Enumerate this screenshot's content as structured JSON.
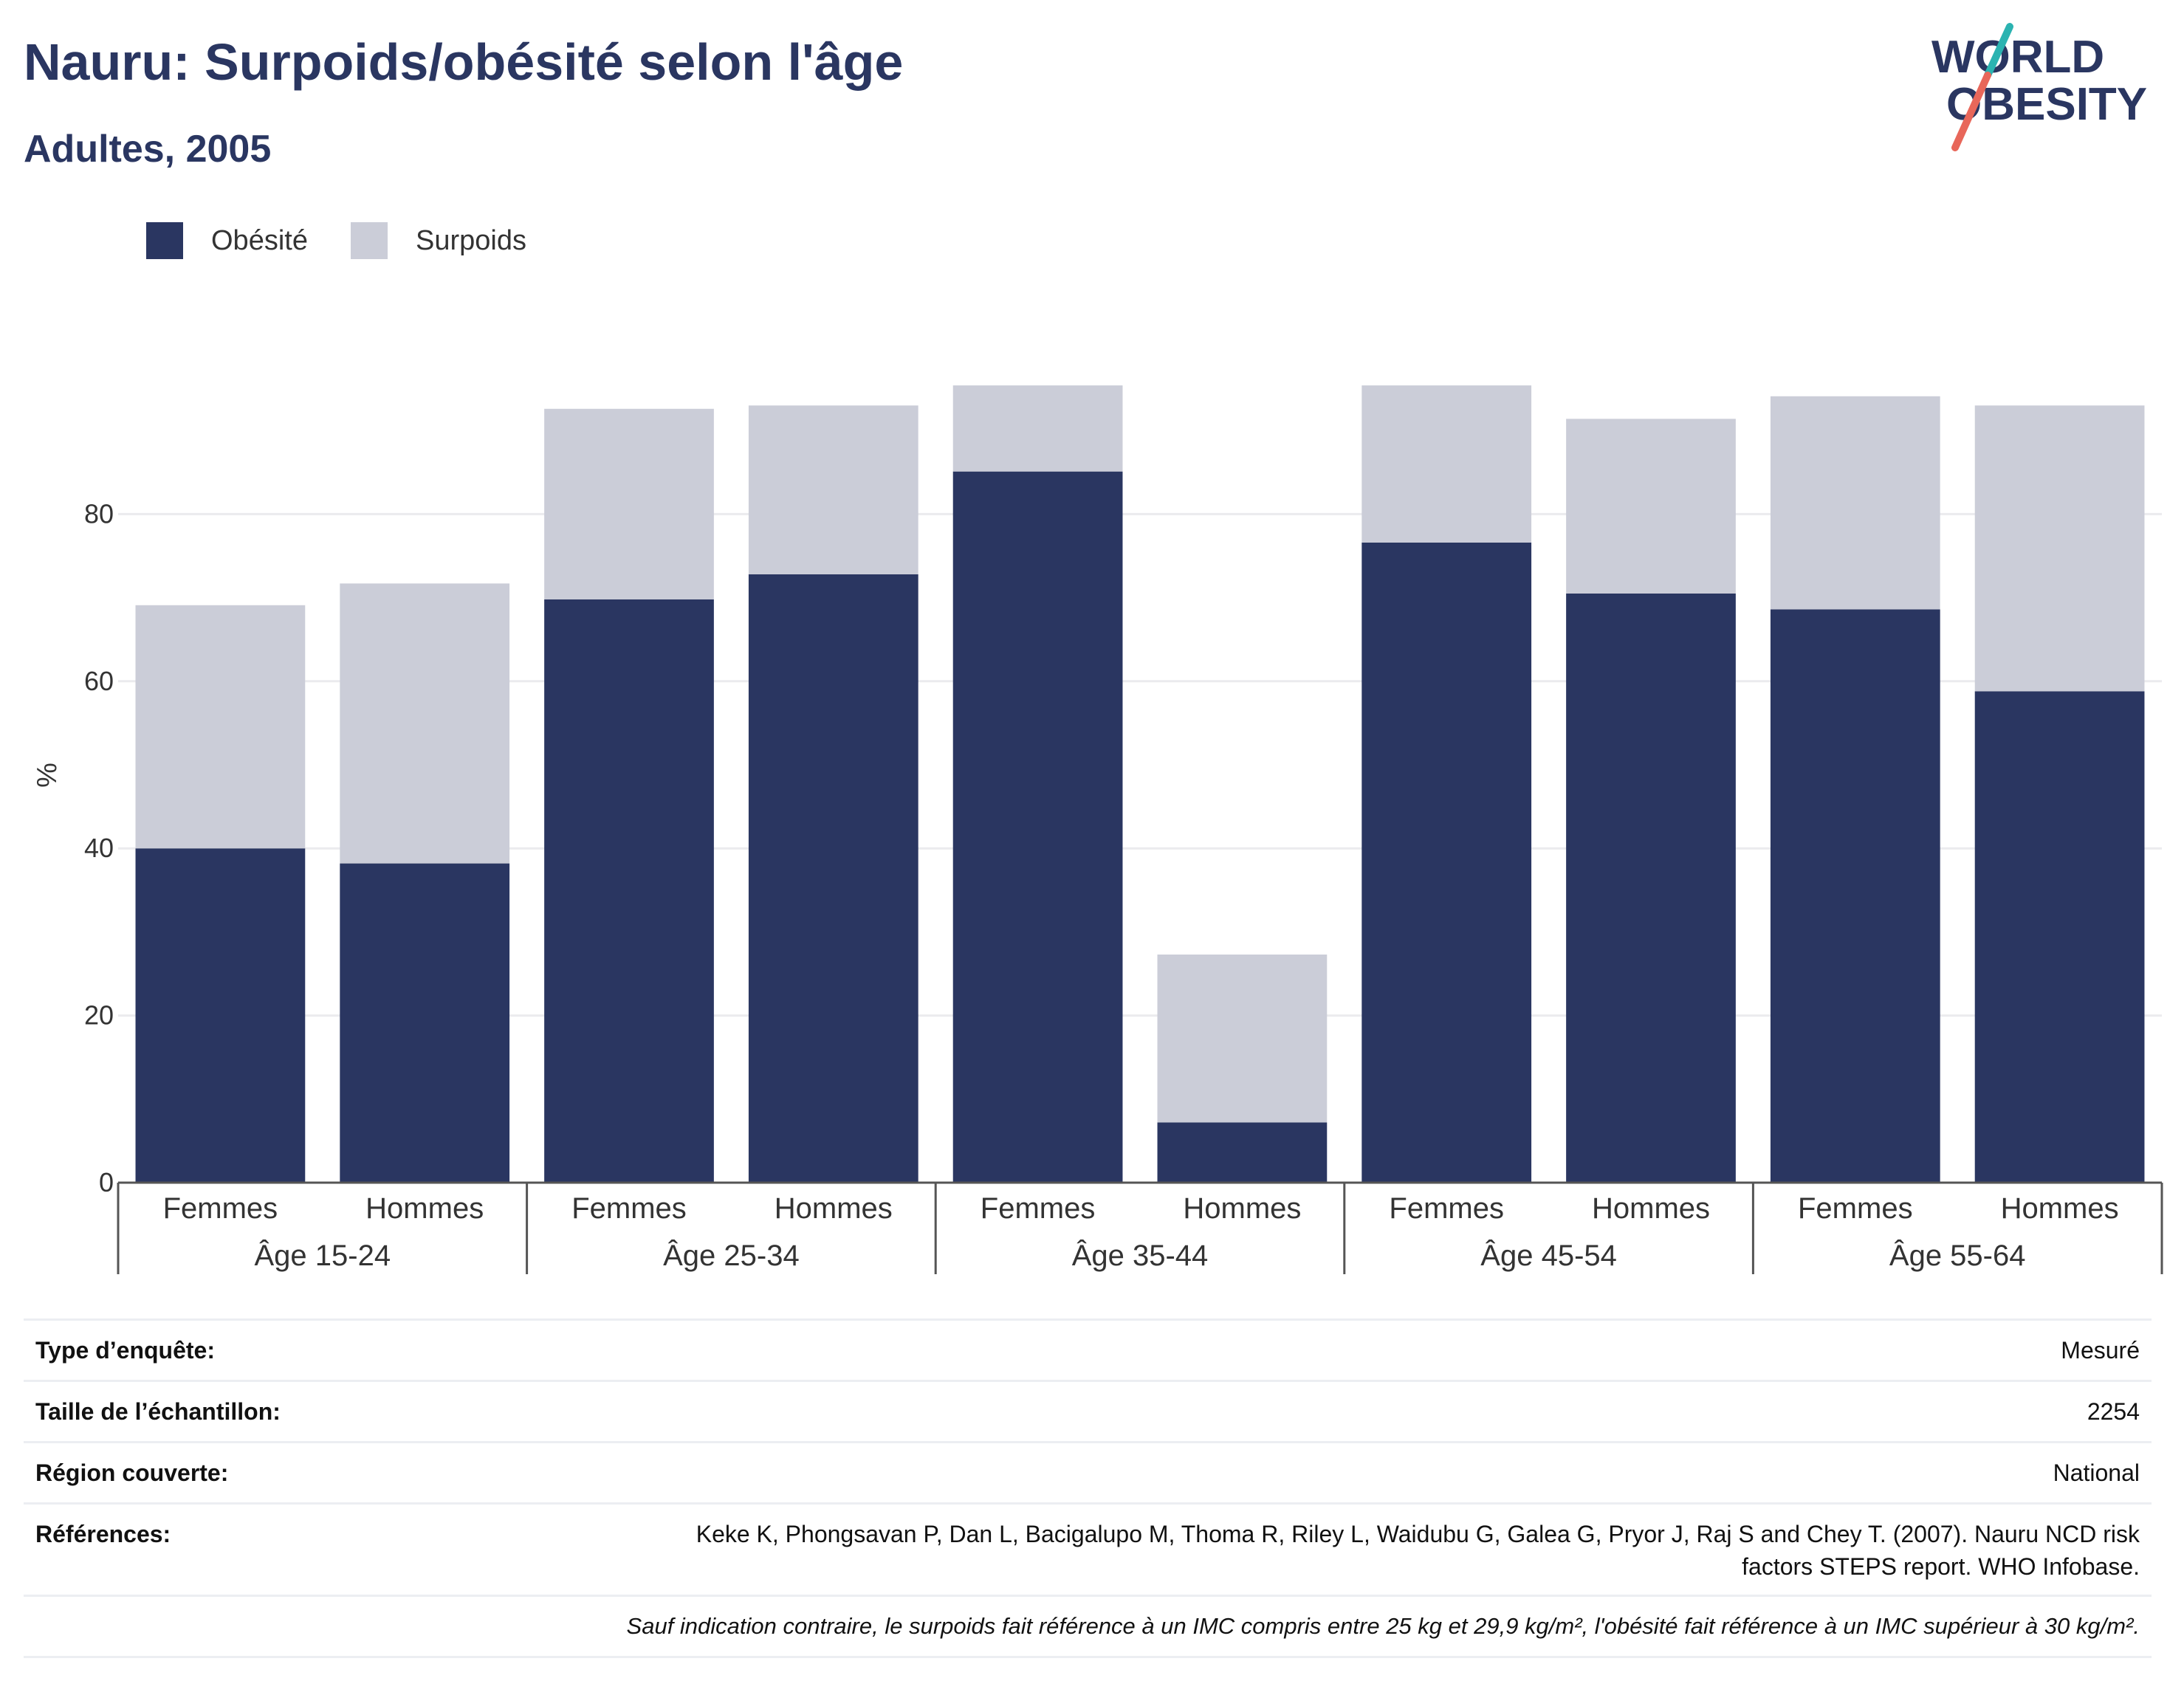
{
  "header": {
    "title": "Nauru: Surpoids/obésité selon l'âge",
    "subtitle": "Adultes, 2005"
  },
  "logo": {
    "line1": "WORLD",
    "line2": "OBESITY",
    "accent_colors": [
      "#2bb3b1",
      "#e8675a"
    ],
    "text_color": "#2a3661"
  },
  "legend": {
    "items": [
      {
        "label": "Obésité",
        "color": "#2a3661"
      },
      {
        "label": "Surpoids",
        "color": "#cbcdd8"
      }
    ]
  },
  "chart_data": {
    "type": "bar",
    "stacked": true,
    "ylabel": "%",
    "ylim": [
      0,
      100
    ],
    "yticks": [
      0,
      20,
      40,
      60,
      80
    ],
    "grid": true,
    "legend_position": "top-left",
    "groups": [
      "Âge 15-24",
      "Âge 25-34",
      "Âge 35-44",
      "Âge 45-54",
      "Âge 55-64"
    ],
    "subcategories": [
      "Femmes",
      "Hommes"
    ],
    "categories": [
      "Femmes",
      "Hommes",
      "Femmes",
      "Hommes",
      "Femmes",
      "Hommes",
      "Femmes",
      "Hommes",
      "Femmes",
      "Hommes"
    ],
    "series": [
      {
        "name": "Obésité",
        "color": "#2a3661",
        "values": [
          40.0,
          38.2,
          69.8,
          72.8,
          85.1,
          7.2,
          76.6,
          70.5,
          68.6,
          58.8
        ]
      },
      {
        "name": "Surpoids",
        "color": "#cbcdd8",
        "values": [
          29.1,
          33.5,
          22.8,
          20.2,
          10.3,
          20.1,
          18.8,
          20.9,
          25.5,
          34.2
        ]
      }
    ]
  },
  "info_table": {
    "rows": [
      {
        "label": "Type d’enquête:",
        "value": "Mesuré"
      },
      {
        "label": "Taille de l’échantillon:",
        "value": "2254"
      },
      {
        "label": "Région couverte:",
        "value": "National"
      },
      {
        "label": "Références:",
        "value_lines": [
          "Keke K, Phongsavan P, Dan L, Bacigalupo M, Thoma R, Riley L, Waidubu G, Galea G, Pryor J, Raj S and Chey T. (2007). Nauru NCD risk",
          "factors STEPS report. WHO Infobase."
        ]
      }
    ],
    "note": "Sauf indication contraire, le surpoids fait référence à un IMC compris entre 25 kg et 29,9 kg/m², l'obésité fait référence à un IMC supérieur à 30 kg/m²."
  }
}
